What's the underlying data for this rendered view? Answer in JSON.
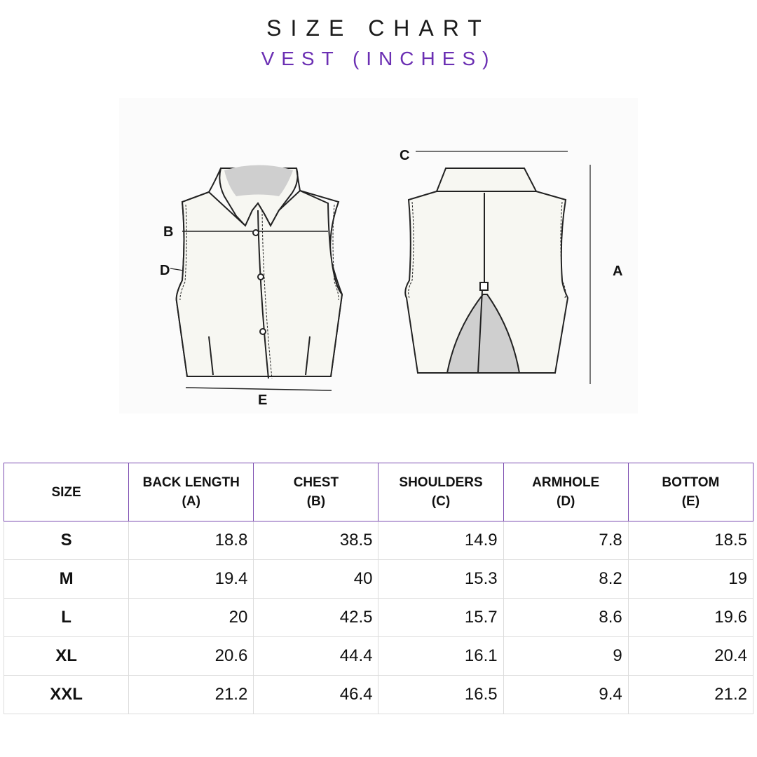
{
  "header": {
    "title": "SIZE CHART",
    "subtitle": "VEST (INCHES)"
  },
  "diagram": {
    "labels": {
      "A": "A",
      "B": "B",
      "C": "C",
      "D": "D",
      "E": "E"
    }
  },
  "table": {
    "headers": [
      {
        "line1": "SIZE",
        "line2": ""
      },
      {
        "line1": "BACK LENGTH",
        "line2": "(A)"
      },
      {
        "line1": "CHEST",
        "line2": "(B)"
      },
      {
        "line1": "SHOULDERS",
        "line2": "(C)"
      },
      {
        "line1": "ARMHOLE",
        "line2": "(D)"
      },
      {
        "line1": "BOTTOM",
        "line2": "(E)"
      }
    ],
    "rows": [
      {
        "size": "S",
        "values": [
          "18.8",
          "38.5",
          "14.9",
          "7.8",
          "18.5"
        ]
      },
      {
        "size": "M",
        "values": [
          "19.4",
          "40",
          "15.3",
          "8.2",
          "19"
        ]
      },
      {
        "size": "L",
        "values": [
          "20",
          "42.5",
          "15.7",
          "8.6",
          "19.6"
        ]
      },
      {
        "size": "XL",
        "values": [
          "20.6",
          "44.4",
          "16.1",
          "9",
          "20.4"
        ]
      },
      {
        "size": "XXL",
        "values": [
          "21.2",
          "46.4",
          "16.5",
          "9.4",
          "21.2"
        ]
      }
    ]
  },
  "colors": {
    "accent": "#6b2fb3",
    "header_border": "#7b4bb0",
    "cell_border": "#dcdcdc",
    "collar_shade": "#cfcfcf"
  }
}
